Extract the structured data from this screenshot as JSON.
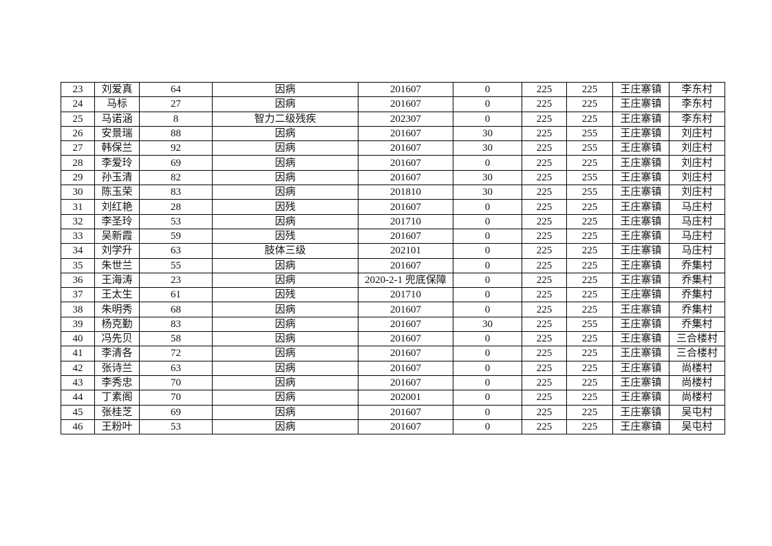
{
  "page": {
    "background_color": "#ffffff",
    "border_color": "#000000",
    "text_color": "#111111"
  },
  "table": {
    "column_keys": [
      "row-number",
      "name",
      "age",
      "reason",
      "approval-date",
      "supplement",
      "base-amount",
      "total-amount",
      "town",
      "village"
    ],
    "rows": [
      [
        "23",
        "刘爱真",
        "64",
        "因病",
        "201607",
        "0",
        "225",
        "225",
        "王庄寨镇",
        "李东村"
      ],
      [
        "24",
        "马标",
        "27",
        "因病",
        "201607",
        "0",
        "225",
        "225",
        "王庄寨镇",
        "李东村"
      ],
      [
        "25",
        "马诺涵",
        "8",
        "智力二级残疾",
        "202307",
        "0",
        "225",
        "225",
        "王庄寨镇",
        "李东村"
      ],
      [
        "26",
        "安景瑞",
        "88",
        "因病",
        "201607",
        "30",
        "225",
        "255",
        "王庄寨镇",
        "刘庄村"
      ],
      [
        "27",
        "韩保兰",
        "92",
        "因病",
        "201607",
        "30",
        "225",
        "255",
        "王庄寨镇",
        "刘庄村"
      ],
      [
        "28",
        "李爱玲",
        "69",
        "因病",
        "201607",
        "0",
        "225",
        "225",
        "王庄寨镇",
        "刘庄村"
      ],
      [
        "29",
        "孙玉清",
        "82",
        "因病",
        "201607",
        "30",
        "225",
        "255",
        "王庄寨镇",
        "刘庄村"
      ],
      [
        "30",
        "陈玉荣",
        "83",
        "因病",
        "201810",
        "30",
        "225",
        "255",
        "王庄寨镇",
        "刘庄村"
      ],
      [
        "31",
        "刘红艳",
        "28",
        "因残",
        "201607",
        "0",
        "225",
        "225",
        "王庄寨镇",
        "马庄村"
      ],
      [
        "32",
        "李圣玲",
        "53",
        "因病",
        "201710",
        "0",
        "225",
        "225",
        "王庄寨镇",
        "马庄村"
      ],
      [
        "33",
        "吴新霞",
        "59",
        "因残",
        "201607",
        "0",
        "225",
        "225",
        "王庄寨镇",
        "马庄村"
      ],
      [
        "34",
        "刘学升",
        "63",
        "肢体三级",
        "202101",
        "0",
        "225",
        "225",
        "王庄寨镇",
        "马庄村"
      ],
      [
        "35",
        "朱世兰",
        "55",
        "因病",
        "201607",
        "0",
        "225",
        "225",
        "王庄寨镇",
        "乔集村"
      ],
      [
        "36",
        "王海涛",
        "23",
        "因病",
        "2020-2-1 兜底保障",
        "0",
        "225",
        "225",
        "王庄寨镇",
        "乔集村"
      ],
      [
        "37",
        "王太生",
        "61",
        "因残",
        "201710",
        "0",
        "225",
        "225",
        "王庄寨镇",
        "乔集村"
      ],
      [
        "38",
        "朱明秀",
        "68",
        "因病",
        "201607",
        "0",
        "225",
        "225",
        "王庄寨镇",
        "乔集村"
      ],
      [
        "39",
        "杨克勤",
        "83",
        "因病",
        "201607",
        "30",
        "225",
        "255",
        "王庄寨镇",
        "乔集村"
      ],
      [
        "40",
        "冯先贝",
        "58",
        "因病",
        "201607",
        "0",
        "225",
        "225",
        "王庄寨镇",
        "三合楼村"
      ],
      [
        "41",
        "李清各",
        "72",
        "因病",
        "201607",
        "0",
        "225",
        "225",
        "王庄寨镇",
        "三合楼村"
      ],
      [
        "42",
        "张诗兰",
        "63",
        "因病",
        "201607",
        "0",
        "225",
        "225",
        "王庄寨镇",
        "尚楼村"
      ],
      [
        "43",
        "李秀忠",
        "70",
        "因病",
        "201607",
        "0",
        "225",
        "225",
        "王庄寨镇",
        "尚楼村"
      ],
      [
        "44",
        "丁素阁",
        "70",
        "因病",
        "202001",
        "0",
        "225",
        "225",
        "王庄寨镇",
        "尚楼村"
      ],
      [
        "45",
        "张桂芝",
        "69",
        "因病",
        "201607",
        "0",
        "225",
        "225",
        "王庄寨镇",
        "吴屯村"
      ],
      [
        "46",
        "王粉叶",
        "53",
        "因病",
        "201607",
        "0",
        "225",
        "225",
        "王庄寨镇",
        "吴屯村"
      ]
    ]
  }
}
